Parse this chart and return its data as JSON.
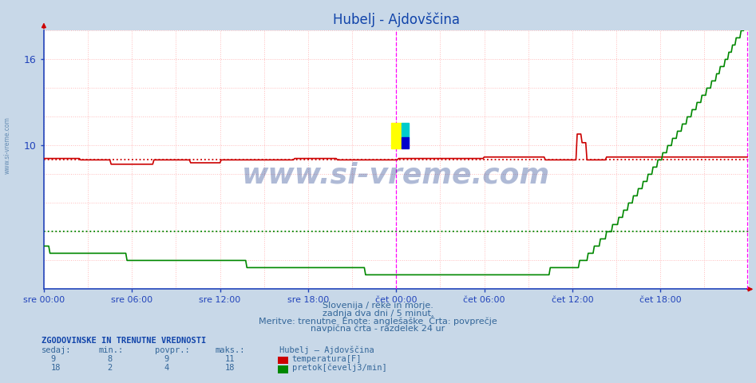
{
  "title": "Hubelj - Ajdovščina",
  "bg_color": "#c8d8e8",
  "plot_bg": "#ffffff",
  "grid_color": "#ffbbbb",
  "temp_color": "#cc0000",
  "flow_color": "#008800",
  "avg_temp": 9.0,
  "avg_flow": 4.0,
  "ylim": [
    0,
    18.0
  ],
  "N": 576,
  "subtitle1": "Slovenija / reke in morje.",
  "subtitle2": "zadnja dva dni / 5 minut.",
  "subtitle3": "Meritve: trenutne  Enote: anglešaške  Črta: povprečje",
  "subtitle4": "navpična črta - razdelek 24 ur",
  "table_title": "ZGODOVINSKE IN TRENUTNE VREDNOSTI",
  "col_h0": "sedaj:",
  "col_h1": "min.:",
  "col_h2": "povpr.:",
  "col_h3": "maks.:",
  "col_h4": "Hubelj – Ajdovščina",
  "row1_v0": "9",
  "row1_v1": "8",
  "row1_v2": "9",
  "row1_v3": "11",
  "row1_label": "temperatura[F]",
  "row2_v0": "18",
  "row2_v1": "2",
  "row2_v2": "4",
  "row2_v3": "18",
  "row2_label": "pretok[čevelj3/min]",
  "xtick_pos": [
    0,
    72,
    144,
    216,
    288,
    360,
    432,
    504
  ],
  "xtick_labels": [
    "sre 00:00",
    "sre 06:00",
    "sre 12:00",
    "sre 18:00",
    "čet 00:00",
    "čet 06:00",
    "čet 12:00",
    "čet 18:00"
  ],
  "vline1": 288,
  "vline2": 575,
  "spine_color": "#2244bb",
  "tick_color": "#2244bb",
  "text_color": "#336699",
  "title_color": "#1144aa",
  "watermark_text": "www.si-vreme.com",
  "watermark_color": "#1a3a8a",
  "side_text": "www.si-vreme.com"
}
